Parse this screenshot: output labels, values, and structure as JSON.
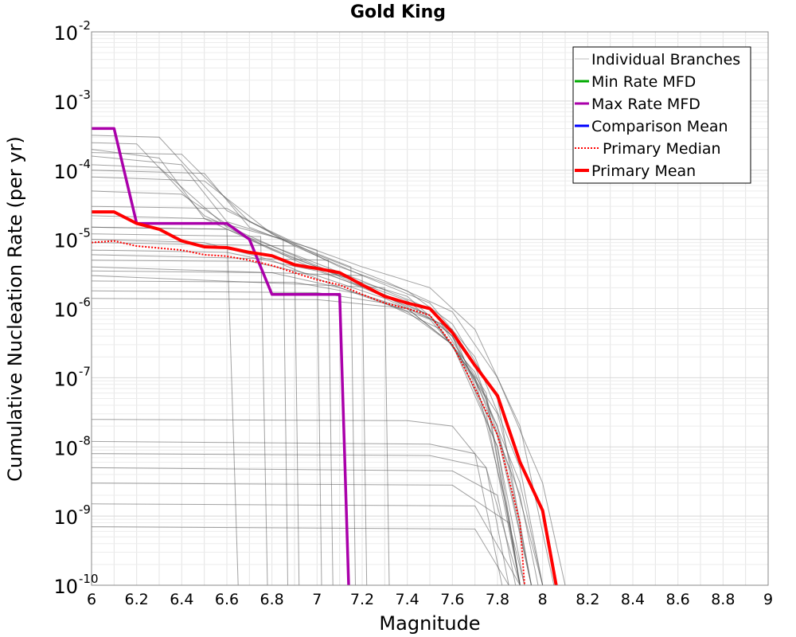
{
  "chart_data": {
    "type": "line",
    "title": "Gold King",
    "xlabel": "Magnitude",
    "ylabel": "Cumulative Nucleation Rate (per yr)",
    "xlim": [
      6,
      9
    ],
    "ylim": [
      1e-10,
      0.01
    ],
    "yscale": "log",
    "grid": true,
    "legend_position": "top-right",
    "x_ticks": [
      "6",
      "6.2",
      "6.4",
      "6.6",
      "6.8",
      "7",
      "7.2",
      "7.4",
      "7.6",
      "7.8",
      "8",
      "8.2",
      "8.4",
      "8.6",
      "8.8",
      "9"
    ],
    "y_ticks": [
      {
        "base": "10",
        "exp": "-10",
        "value": 1e-10
      },
      {
        "base": "10",
        "exp": "-9",
        "value": 1e-09
      },
      {
        "base": "10",
        "exp": "-8",
        "value": 1e-08
      },
      {
        "base": "10",
        "exp": "-7",
        "value": 1e-07
      },
      {
        "base": "10",
        "exp": "-6",
        "value": 1e-06
      },
      {
        "base": "10",
        "exp": "-5",
        "value": 1e-05
      },
      {
        "base": "10",
        "exp": "-4",
        "value": 0.0001
      },
      {
        "base": "10",
        "exp": "-3",
        "value": 0.001
      },
      {
        "base": "10",
        "exp": "-2",
        "value": 0.01
      }
    ],
    "series": [
      {
        "name": "Individual Branches",
        "color": "#555555",
        "style": "thin-gray",
        "branch_curves": [
          [
            [
              6.0,
              0.00032
            ],
            [
              6.3,
              0.0003
            ],
            [
              6.6,
              2.6e-05
            ],
            [
              6.9,
              9e-06
            ],
            [
              7.2,
              4e-06
            ],
            [
              7.5,
              2e-06
            ],
            [
              7.7,
              5e-07
            ],
            [
              7.9,
              2e-08
            ],
            [
              8.05,
              1e-10
            ]
          ],
          [
            [
              6.0,
              0.00025
            ],
            [
              6.2,
              0.00024
            ],
            [
              6.5,
              2.2e-05
            ],
            [
              6.8,
              8e-06
            ],
            [
              7.1,
              3e-06
            ],
            [
              7.4,
              1.5e-06
            ],
            [
              7.6,
              4e-07
            ],
            [
              7.8,
              1e-08
            ],
            [
              7.9,
              1e-10
            ]
          ],
          [
            [
              6.0,
              0.00018
            ],
            [
              6.4,
              0.00017
            ],
            [
              6.7,
              1.8e-05
            ],
            [
              7.0,
              6e-06
            ],
            [
              7.3,
              2.5e-06
            ],
            [
              7.6,
              9e-07
            ],
            [
              7.8,
              1e-07
            ],
            [
              8.0,
              3e-09
            ],
            [
              8.1,
              1e-10
            ]
          ],
          [
            [
              6.0,
              0.00012
            ],
            [
              6.3,
              0.00011
            ],
            [
              6.6,
              1.5e-05
            ],
            [
              6.9,
              5e-06
            ],
            [
              7.2,
              2e-06
            ],
            [
              7.5,
              8e-07
            ],
            [
              7.7,
              1e-07
            ],
            [
              7.85,
              1e-09
            ],
            [
              7.9,
              1e-10
            ]
          ],
          [
            [
              6.0,
              8e-05
            ],
            [
              6.5,
              7e-05
            ],
            [
              6.8,
              1.2e-05
            ],
            [
              7.1,
              4e-06
            ],
            [
              7.4,
              1.8e-06
            ],
            [
              7.6,
              6e-07
            ],
            [
              7.8,
              5e-08
            ],
            [
              7.95,
              1e-10
            ]
          ],
          [
            [
              6.0,
              5e-05
            ],
            [
              6.4,
              4.5e-05
            ],
            [
              6.7,
              1e-05
            ],
            [
              7.0,
              4e-06
            ],
            [
              7.3,
              1.5e-06
            ],
            [
              7.6,
              5e-07
            ],
            [
              7.75,
              3e-08
            ],
            [
              7.9,
              1e-10
            ]
          ],
          [
            [
              6.0,
              3e-05
            ],
            [
              6.6,
              2.8e-05
            ],
            [
              6.9,
              8e-06
            ],
            [
              7.2,
              3e-06
            ],
            [
              7.5,
              1.2e-06
            ],
            [
              7.7,
              2e-07
            ],
            [
              7.9,
              5e-09
            ],
            [
              8.0,
              1e-10
            ]
          ],
          [
            [
              6.0,
              2.2e-05
            ],
            [
              6.5,
              2e-05
            ],
            [
              6.8,
              7e-06
            ],
            [
              7.1,
              3e-06
            ],
            [
              7.4,
              1.3e-06
            ],
            [
              7.6,
              4e-07
            ],
            [
              7.8,
              2e-08
            ],
            [
              7.95,
              1e-10
            ]
          ],
          [
            [
              6.0,
              1.5e-05
            ],
            [
              6.6,
              1.4e-05
            ],
            [
              6.9,
              6e-06
            ],
            [
              7.2,
              2.5e-06
            ],
            [
              7.5,
              1e-06
            ],
            [
              7.7,
              1.5e-07
            ],
            [
              7.85,
              5e-09
            ],
            [
              7.95,
              1e-10
            ]
          ],
          [
            [
              6.0,
              1e-05
            ],
            [
              6.5,
              9e-06
            ],
            [
              6.8,
              5e-06
            ],
            [
              7.1,
              2e-06
            ],
            [
              7.4,
              9e-07
            ],
            [
              7.6,
              3e-07
            ],
            [
              7.8,
              3e-08
            ],
            [
              8.0,
              1e-10
            ]
          ],
          [
            [
              6.0,
              7e-06
            ],
            [
              6.6,
              6.5e-06
            ],
            [
              7.0,
              3.5e-06
            ],
            [
              7.3,
              1.6e-06
            ],
            [
              7.5,
              8e-07
            ],
            [
              7.7,
              1e-07
            ],
            [
              7.9,
              2e-09
            ],
            [
              7.98,
              1e-10
            ]
          ],
          [
            [
              6.0,
              5e-06
            ],
            [
              6.7,
              4.8e-06
            ],
            [
              7.0,
              3e-06
            ],
            [
              7.3,
              1.4e-06
            ],
            [
              7.55,
              6e-07
            ],
            [
              7.75,
              6e-08
            ],
            [
              7.9,
              1e-10
            ]
          ],
          [
            [
              6.0,
              3.5e-06
            ],
            [
              6.8,
              3.3e-06
            ],
            [
              7.1,
              2e-06
            ],
            [
              7.4,
              1e-06
            ],
            [
              7.6,
              3e-07
            ],
            [
              7.8,
              1e-08
            ],
            [
              7.92,
              1e-10
            ]
          ],
          [
            [
              6.0,
              2.5e-06
            ],
            [
              6.9,
              2.4e-06
            ],
            [
              7.2,
              1.6e-06
            ],
            [
              7.5,
              7e-07
            ],
            [
              7.7,
              1.2e-07
            ],
            [
              7.9,
              3e-09
            ],
            [
              8.0,
              1e-10
            ]
          ],
          [
            [
              6.0,
              1.8e-06
            ],
            [
              7.0,
              1.7e-06
            ],
            [
              7.3,
              1.2e-06
            ],
            [
              7.55,
              5e-07
            ],
            [
              7.75,
              5e-08
            ],
            [
              7.9,
              1e-10
            ]
          ],
          [
            [
              6.0,
              1.4e-06
            ],
            [
              7.0,
              1.35e-06
            ],
            [
              7.4,
              1e-06
            ],
            [
              7.6,
              3e-07
            ],
            [
              7.8,
              1.5e-08
            ],
            [
              7.95,
              1e-10
            ]
          ],
          [
            [
              6.0,
              2.5e-08
            ],
            [
              7.4,
              2.4e-08
            ],
            [
              7.6,
              2e-08
            ],
            [
              7.75,
              5e-09
            ],
            [
              7.85,
              1e-10
            ]
          ],
          [
            [
              6.0,
              1.2e-08
            ],
            [
              7.5,
              1.1e-08
            ],
            [
              7.7,
              8e-09
            ],
            [
              7.82,
              1e-10
            ]
          ],
          [
            [
              6.0,
              8e-09
            ],
            [
              7.5,
              7.5e-09
            ],
            [
              7.75,
              5e-09
            ],
            [
              7.9,
              1e-10
            ]
          ],
          [
            [
              6.0,
              5e-09
            ],
            [
              7.6,
              4.5e-09
            ],
            [
              7.8,
              2e-09
            ],
            [
              7.88,
              1e-10
            ]
          ],
          [
            [
              6.0,
              3e-09
            ],
            [
              7.6,
              2.8e-09
            ],
            [
              7.85,
              8e-10
            ],
            [
              7.92,
              1e-10
            ]
          ],
          [
            [
              6.0,
              1.5e-09
            ],
            [
              7.7,
              1.4e-09
            ],
            [
              7.9,
              1e-10
            ]
          ],
          [
            [
              6.0,
              7e-10
            ],
            [
              7.7,
              6.5e-10
            ],
            [
              7.85,
              1e-10
            ]
          ],
          [
            [
              6.0,
              1.5e-05
            ],
            [
              6.6,
              1.4e-05
            ],
            [
              6.65,
              1e-10
            ]
          ],
          [
            [
              6.0,
              1.2e-05
            ],
            [
              6.75,
              1.1e-05
            ],
            [
              6.78,
              1e-10
            ]
          ],
          [
            [
              6.0,
              9e-06
            ],
            [
              6.9,
              8e-06
            ],
            [
              6.92,
              1e-10
            ]
          ],
          [
            [
              6.0,
              6e-06
            ],
            [
              7.05,
              5e-06
            ],
            [
              7.07,
              1e-10
            ]
          ],
          [
            [
              6.0,
              4e-06
            ],
            [
              7.2,
              3e-06
            ],
            [
              7.22,
              1e-10
            ]
          ],
          [
            [
              6.0,
              3e-06
            ],
            [
              7.3,
              2e-06
            ],
            [
              7.32,
              1e-10
            ]
          ],
          [
            [
              6.0,
              0.0002
            ],
            [
              6.3,
              0.00015
            ],
            [
              6.5,
              2e-05
            ],
            [
              6.85,
              1e-05
            ],
            [
              6.87,
              1e-10
            ]
          ],
          [
            [
              6.0,
              0.00016
            ],
            [
              6.4,
              0.00012
            ],
            [
              6.6,
              1.8e-05
            ],
            [
              7.0,
              7e-06
            ],
            [
              7.02,
              1e-10
            ]
          ],
          [
            [
              6.0,
              0.0001
            ],
            [
              6.5,
              9e-05
            ],
            [
              6.7,
              1.5e-05
            ],
            [
              7.15,
              4e-06
            ],
            [
              7.17,
              1e-10
            ]
          ]
        ]
      },
      {
        "name": "Min Rate MFD",
        "color": "#00aa00",
        "x": [],
        "y": []
      },
      {
        "name": "Max Rate MFD",
        "color": "#aa00aa",
        "x": [
          6.0,
          6.1,
          6.2,
          6.6,
          6.7,
          6.8,
          7.1,
          7.14
        ],
        "y": [
          0.0004,
          0.0004,
          1.7e-05,
          1.7e-05,
          1e-05,
          1.6e-06,
          1.6e-06,
          1e-10
        ]
      },
      {
        "name": "Comparison Mean",
        "color": "#0000ff",
        "x": [],
        "y": []
      },
      {
        "name": "Primary Median",
        "color": "#ff0000",
        "style": "dotted",
        "x": [
          6.0,
          6.1,
          6.2,
          6.3,
          6.4,
          6.5,
          6.6,
          6.7,
          6.8,
          6.9,
          7.0,
          7.1,
          7.2,
          7.3,
          7.4,
          7.5,
          7.6,
          7.7,
          7.8,
          7.9,
          7.92
        ],
        "y": [
          9e-06,
          9.5e-06,
          8e-06,
          7.5e-06,
          7e-06,
          6e-06,
          5.7e-06,
          5e-06,
          4.2e-06,
          3.3e-06,
          2.6e-06,
          2.2e-06,
          1.6e-06,
          1.2e-06,
          1e-06,
          8e-07,
          3e-07,
          7e-08,
          1.5e-08,
          8e-10,
          1e-10
        ]
      },
      {
        "name": "Primary Mean",
        "color": "#ff0000",
        "style": "thick",
        "x": [
          6.0,
          6.1,
          6.2,
          6.3,
          6.4,
          6.5,
          6.6,
          6.7,
          6.8,
          6.9,
          7.0,
          7.1,
          7.2,
          7.3,
          7.4,
          7.5,
          7.6,
          7.7,
          7.8,
          7.9,
          8.0,
          8.06
        ],
        "y": [
          2.5e-05,
          2.5e-05,
          1.7e-05,
          1.4e-05,
          9.5e-06,
          7.8e-06,
          7.6e-06,
          6.5e-06,
          5.8e-06,
          4.3e-06,
          3.8e-06,
          3.3e-06,
          2.2e-06,
          1.5e-06,
          1.2e-06,
          1e-06,
          4.5e-07,
          1.5e-07,
          5.5e-08,
          6e-09,
          1.2e-09,
          1e-10
        ]
      }
    ]
  }
}
